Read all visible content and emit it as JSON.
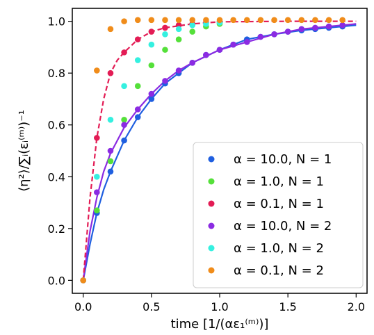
{
  "chart_data": {
    "type": "scatter",
    "xlabel": "time [1/(αε₁⁽ᵐ⁾)]",
    "ylabel": "⟨η²⟩/∑ᵢ(εᵢ⁽ᵐ⁾)⁻¹",
    "xlim": [
      -0.08,
      2.08
    ],
    "ylim": [
      -0.05,
      1.05
    ],
    "xticks": [
      0.0,
      0.5,
      1.0,
      1.5,
      2.0
    ],
    "xtick_labels": [
      "0.0",
      "0.5",
      "1.0",
      "1.5",
      "2.0"
    ],
    "yticks": [
      0.0,
      0.2,
      0.4,
      0.6,
      0.8,
      1.0
    ],
    "ytick_labels": [
      "0.0",
      "0.2",
      "0.4",
      "0.6",
      "0.8",
      "1.0"
    ],
    "grid": false,
    "legend_position": "bottom-right",
    "series": [
      {
        "name": "α = 10.0, N = 1",
        "color": "#1f5fe0",
        "x": [
          0.0,
          0.1,
          0.2,
          0.3,
          0.4,
          0.5,
          0.6,
          0.7,
          0.8,
          0.9,
          1.0,
          1.1,
          1.2,
          1.3,
          1.4,
          1.5,
          1.6,
          1.7,
          1.8,
          1.9
        ],
        "y": [
          0.0,
          0.26,
          0.42,
          0.54,
          0.63,
          0.7,
          0.76,
          0.8,
          0.84,
          0.87,
          0.89,
          0.91,
          0.93,
          0.94,
          0.95,
          0.96,
          0.965,
          0.97,
          0.975,
          0.98
        ]
      },
      {
        "name": "α = 1.0, N = 1",
        "color": "#55e03a",
        "x": [
          0.0,
          0.1,
          0.2,
          0.3,
          0.4,
          0.5,
          0.6,
          0.7,
          0.8,
          0.9,
          1.0
        ],
        "y": [
          0.0,
          0.27,
          0.46,
          0.62,
          0.75,
          0.83,
          0.89,
          0.93,
          0.96,
          0.98,
          0.99
        ]
      },
      {
        "name": "α = 0.1, N = 1",
        "color": "#e31c55",
        "x": [
          0.0,
          0.1,
          0.2,
          0.3,
          0.4,
          0.5,
          0.6,
          0.7,
          0.8,
          0.9,
          1.0
        ],
        "y": [
          0.0,
          0.55,
          0.8,
          0.88,
          0.93,
          0.96,
          0.975,
          0.985,
          0.99,
          0.995,
          0.998
        ]
      },
      {
        "name": "α = 10.0, N = 2",
        "color": "#8b2be2",
        "x": [
          0.0,
          0.1,
          0.2,
          0.3,
          0.4,
          0.5,
          0.6,
          0.7,
          0.8,
          0.9,
          1.0,
          1.1,
          1.2,
          1.3,
          1.4,
          1.5,
          1.6,
          1.7,
          1.8,
          1.9
        ],
        "y": [
          0.0,
          0.34,
          0.5,
          0.6,
          0.66,
          0.72,
          0.77,
          0.81,
          0.84,
          0.87,
          0.89,
          0.91,
          0.92,
          0.94,
          0.95,
          0.96,
          0.97,
          0.975,
          0.98,
          0.985
        ]
      },
      {
        "name": "α = 1.0, N = 2",
        "color": "#35f0e0",
        "x": [
          0.0,
          0.1,
          0.2,
          0.3,
          0.4,
          0.5,
          0.6,
          0.7,
          0.8,
          0.9,
          1.0
        ],
        "y": [
          0.0,
          0.4,
          0.62,
          0.75,
          0.85,
          0.91,
          0.95,
          0.97,
          0.985,
          0.99,
          0.995
        ]
      },
      {
        "name": "α = 0.1, N = 2",
        "color": "#f08c1a",
        "x": [
          0.0,
          0.1,
          0.2,
          0.3,
          0.4,
          0.5,
          0.6,
          0.7,
          0.8,
          0.9,
          1.0,
          1.1,
          1.2,
          1.3,
          1.4,
          1.5,
          1.6,
          1.7,
          1.8,
          1.9
        ],
        "y": [
          0.0,
          0.81,
          0.97,
          1.0,
          1.005,
          1.005,
          1.005,
          1.005,
          1.005,
          1.005,
          1.005,
          1.005,
          1.005,
          1.005,
          1.005,
          1.005,
          1.005,
          1.005,
          1.005,
          1.005
        ]
      }
    ],
    "curves": [
      {
        "color": "#1f5fe0",
        "style": "solid",
        "x": [
          0.0,
          0.05,
          0.1,
          0.15,
          0.2,
          0.3,
          0.4,
          0.5,
          0.6,
          0.7,
          0.8,
          1.0,
          1.2,
          1.4,
          1.6,
          1.8,
          2.0
        ],
        "y": [
          0.0,
          0.14,
          0.26,
          0.35,
          0.42,
          0.54,
          0.63,
          0.7,
          0.76,
          0.8,
          0.84,
          0.89,
          0.93,
          0.95,
          0.965,
          0.975,
          0.985
        ]
      },
      {
        "color": "#8b2be2",
        "style": "solid",
        "x": [
          0.0,
          0.05,
          0.1,
          0.15,
          0.2,
          0.3,
          0.4,
          0.5,
          0.6,
          0.7,
          0.8,
          1.0,
          1.2,
          1.4,
          1.6,
          1.8,
          2.0
        ],
        "y": [
          0.0,
          0.19,
          0.32,
          0.42,
          0.49,
          0.59,
          0.66,
          0.72,
          0.77,
          0.81,
          0.84,
          0.89,
          0.92,
          0.95,
          0.97,
          0.98,
          0.99
        ]
      },
      {
        "color": "#e31c55",
        "style": "dashed",
        "x": [
          0.0,
          0.05,
          0.1,
          0.15,
          0.2,
          0.25,
          0.3,
          0.4,
          0.5,
          0.6,
          0.8,
          1.0,
          1.5,
          2.0
        ],
        "y": [
          0.0,
          0.32,
          0.55,
          0.7,
          0.8,
          0.85,
          0.88,
          0.93,
          0.96,
          0.975,
          0.99,
          0.998,
          1.0,
          1.0
        ]
      }
    ]
  }
}
